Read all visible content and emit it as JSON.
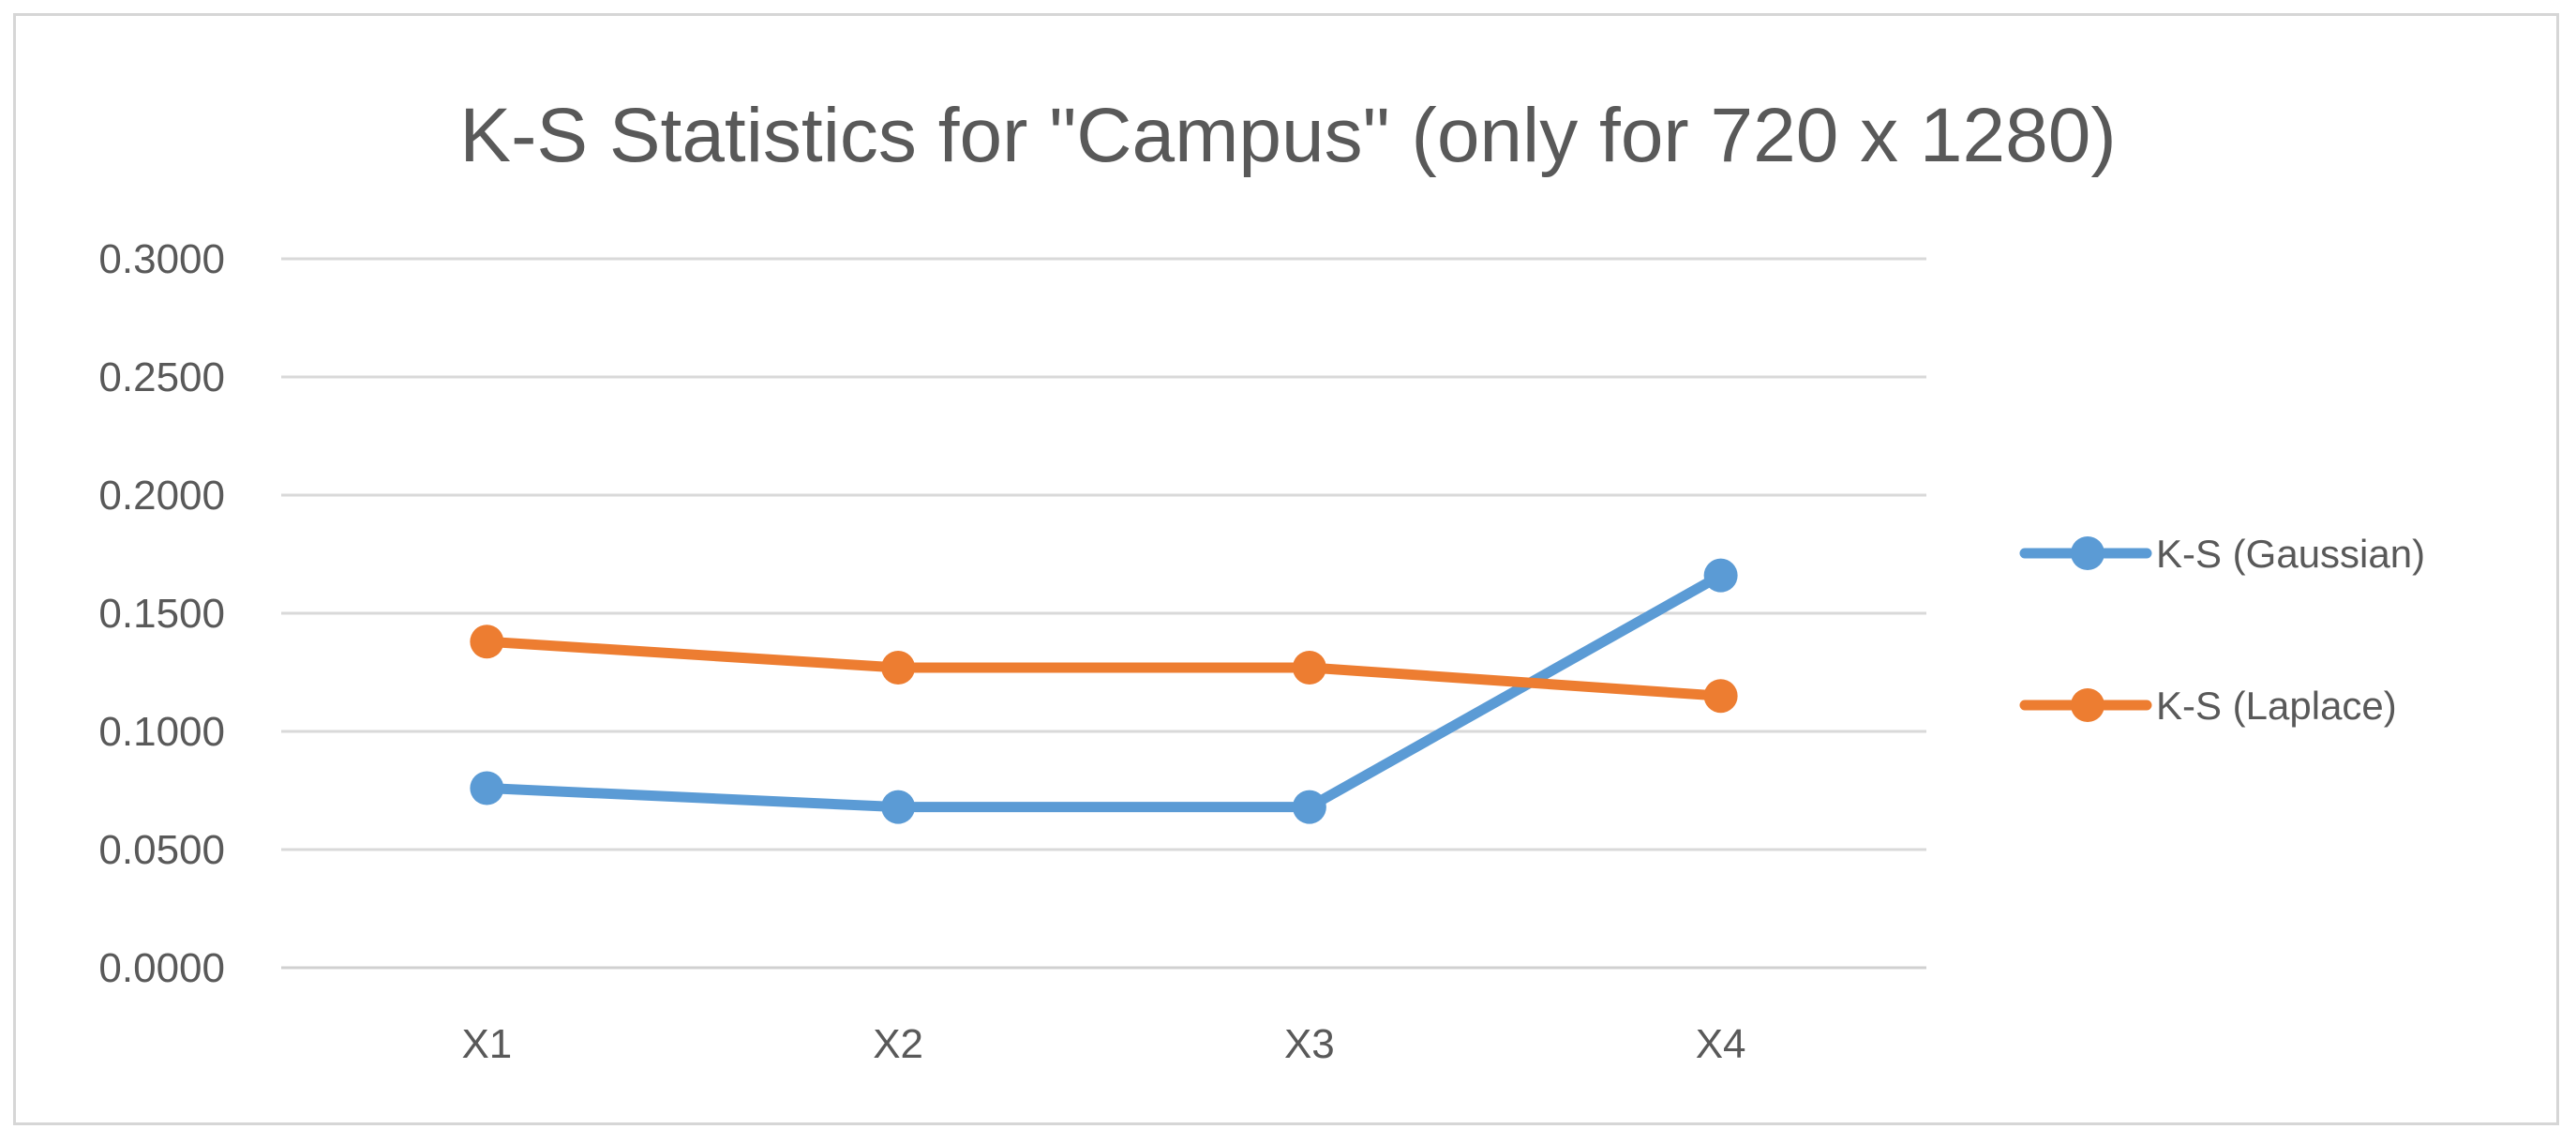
{
  "chart_data": {
    "type": "line",
    "title": "K-S Statistics for \"Campus\" (only for 720 x 1280)",
    "xlabel": "",
    "ylabel": "",
    "categories": [
      "X1",
      "X2",
      "X3",
      "X4"
    ],
    "ylim": [
      0,
      0.3
    ],
    "yticks": [
      0,
      0.05,
      0.1,
      0.15,
      0.2,
      0.25,
      0.3
    ],
    "ytick_labels": [
      "0.0000",
      "0.0500",
      "0.1000",
      "0.1500",
      "0.2000",
      "0.2500",
      "0.3000"
    ],
    "grid": true,
    "legend_position": "right",
    "series": [
      {
        "name": "K-S (Gaussian)",
        "color": "#5b9bd5",
        "values": [
          0.076,
          0.068,
          0.068,
          0.166
        ]
      },
      {
        "name": "K-S (Laplace)",
        "color": "#ed7d31",
        "values": [
          0.138,
          0.127,
          0.127,
          0.115
        ]
      }
    ]
  }
}
